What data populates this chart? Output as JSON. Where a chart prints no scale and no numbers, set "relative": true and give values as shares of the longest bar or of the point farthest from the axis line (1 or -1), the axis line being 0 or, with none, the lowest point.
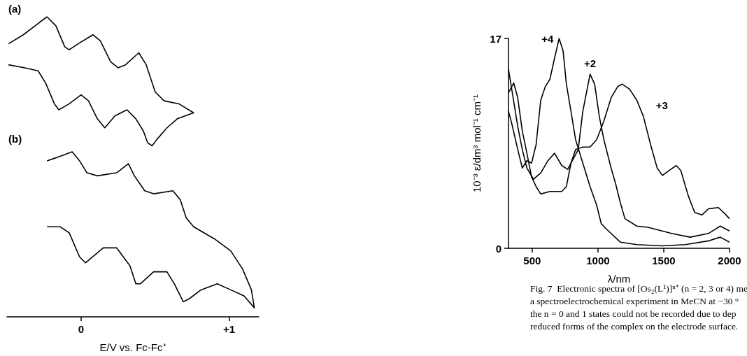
{
  "chart_data": [
    {
      "type": "line",
      "relative": true,
      "marker": "none",
      "xlabel": "E/V vs. Fc-Fc⁺",
      "xlim": [
        -0.5,
        1.2
      ],
      "xticks": [
        0,
        {
          "value": 1,
          "label": "+1"
        }
      ],
      "annotations": [
        "(a)",
        "(b)"
      ],
      "series": [
        {
          "color": "#000000",
          "x": [
            -0.49,
            -0.39,
            -0.31,
            -0.23,
            -0.17,
            -0.11,
            -0.08,
            -0.02,
            0.08,
            0.13,
            0.2,
            0.25,
            0.3,
            0.39,
            0.44,
            0.5,
            0.56,
            0.66,
            0.76,
            0.65,
            0.58,
            0.51,
            0.48,
            0.45,
            0.42,
            0.37,
            0.31,
            0.23,
            0.16,
            0.11,
            0.05,
            0.0,
            -0.08,
            -0.15,
            -0.18,
            -0.24,
            -0.29,
            -0.38,
            -0.49
          ],
          "values": [
            0.91,
            0.94,
            0.97,
            1.0,
            0.97,
            0.9,
            0.89,
            0.91,
            0.94,
            0.92,
            0.85,
            0.83,
            0.84,
            0.88,
            0.84,
            0.75,
            0.72,
            0.71,
            0.68,
            0.66,
            0.63,
            0.59,
            0.57,
            0.58,
            0.62,
            0.66,
            0.69,
            0.67,
            0.63,
            0.66,
            0.72,
            0.74,
            0.71,
            0.69,
            0.71,
            0.78,
            0.82,
            0.83,
            0.84
          ]
        },
        {
          "color": "#000000",
          "x": [
            -0.23,
            -0.17,
            -0.06,
            -0.01,
            0.04,
            0.11,
            0.24,
            0.32,
            0.36,
            0.43,
            0.49,
            0.62,
            0.67,
            0.71,
            0.76,
            0.9,
            1.01,
            1.09,
            1.15,
            1.17,
            1.1,
            1.01,
            0.92,
            0.81,
            0.73,
            0.69,
            0.67,
            0.63,
            0.58,
            0.49,
            0.4,
            0.37,
            0.33,
            0.24,
            0.15,
            0.03,
            -0.01,
            -0.08,
            -0.14,
            -0.23
          ],
          "values": [
            0.52,
            0.53,
            0.55,
            0.52,
            0.48,
            0.47,
            0.48,
            0.51,
            0.47,
            0.42,
            0.41,
            0.42,
            0.39,
            0.33,
            0.3,
            0.26,
            0.22,
            0.16,
            0.09,
            0.03,
            0.07,
            0.09,
            0.11,
            0.09,
            0.06,
            0.05,
            0.07,
            0.11,
            0.15,
            0.15,
            0.11,
            0.11,
            0.17,
            0.23,
            0.23,
            0.18,
            0.2,
            0.28,
            0.3,
            0.3
          ]
        }
      ]
    },
    {
      "type": "line",
      "marker": "none",
      "xlabel": "λ/nm",
      "ylabel": "10⁻³ ε/dm³ mol⁻¹ cm⁻¹",
      "xlim": [
        320,
        2000
      ],
      "ylim": [
        0,
        17
      ],
      "xticks": [
        500,
        1000,
        1500,
        2000
      ],
      "yticks": [
        0,
        17
      ],
      "annotations": [
        "Fig. 7  Electronic spectra of [Os₂(L¹)]ⁿ⁺ (n = 2, 3 or 4) me\na spectroelectrochemical experiment in MeCN at −30 °\nthe n = 0 and 1 states could not be recorded due to dep\nreduced forms of the complex on the electrode surface."
      ],
      "series": [
        {
          "name": "+4",
          "color": "#000000",
          "x": [
            320,
            345,
            395,
            425,
            460,
            495,
            530,
            565,
            600,
            635,
            670,
            705,
            735,
            760,
            795,
            830,
            885,
            940,
            990,
            1025,
            1060,
            1170,
            1295,
            1490,
            1665,
            1840,
            1930,
            2000
          ],
          "values": [
            11.1,
            10.1,
            7.8,
            6.5,
            7.1,
            6.9,
            8.4,
            12.0,
            13.1,
            13.7,
            15.4,
            17.0,
            16.0,
            13.3,
            11.1,
            8.8,
            6.9,
            5.0,
            3.5,
            2.0,
            1.6,
            0.5,
            0.3,
            0.2,
            0.3,
            0.6,
            0.9,
            0.5
          ]
        },
        {
          "name": "+2",
          "color": "#000000",
          "x": [
            320,
            355,
            390,
            425,
            460,
            510,
            565,
            620,
            670,
            725,
            770,
            815,
            850,
            885,
            940,
            975,
            1010,
            1045,
            1100,
            1135,
            1170,
            1205,
            1295,
            1380,
            1560,
            1700,
            1840,
            1930,
            2000
          ],
          "values": [
            14.5,
            12.2,
            9.9,
            8.0,
            6.5,
            5.6,
            6.1,
            7.1,
            7.7,
            6.7,
            6.4,
            7.3,
            8.0,
            11.1,
            14.1,
            13.3,
            10.7,
            8.8,
            6.5,
            5.2,
            3.7,
            2.4,
            1.8,
            1.7,
            1.2,
            0.9,
            1.2,
            1.8,
            1.4
          ]
        },
        {
          "name": "+3",
          "color": "#000000",
          "x": [
            320,
            360,
            390,
            425,
            460,
            495,
            530,
            565,
            635,
            725,
            760,
            795,
            830,
            885,
            940,
            990,
            1045,
            1100,
            1150,
            1185,
            1240,
            1295,
            1345,
            1400,
            1450,
            1490,
            1540,
            1595,
            1630,
            1685,
            1735,
            1790,
            1840,
            1915,
            1965,
            2000
          ],
          "values": [
            12.6,
            13.4,
            12.2,
            9.5,
            7.7,
            5.8,
            5.0,
            4.4,
            4.6,
            4.6,
            5.0,
            6.9,
            8.0,
            8.2,
            8.2,
            8.8,
            10.3,
            12.2,
            13.1,
            13.3,
            12.9,
            12.0,
            10.7,
            8.4,
            6.5,
            5.9,
            6.3,
            6.7,
            6.3,
            4.3,
            2.9,
            2.7,
            3.2,
            3.3,
            2.8,
            2.4
          ]
        }
      ]
    }
  ]
}
